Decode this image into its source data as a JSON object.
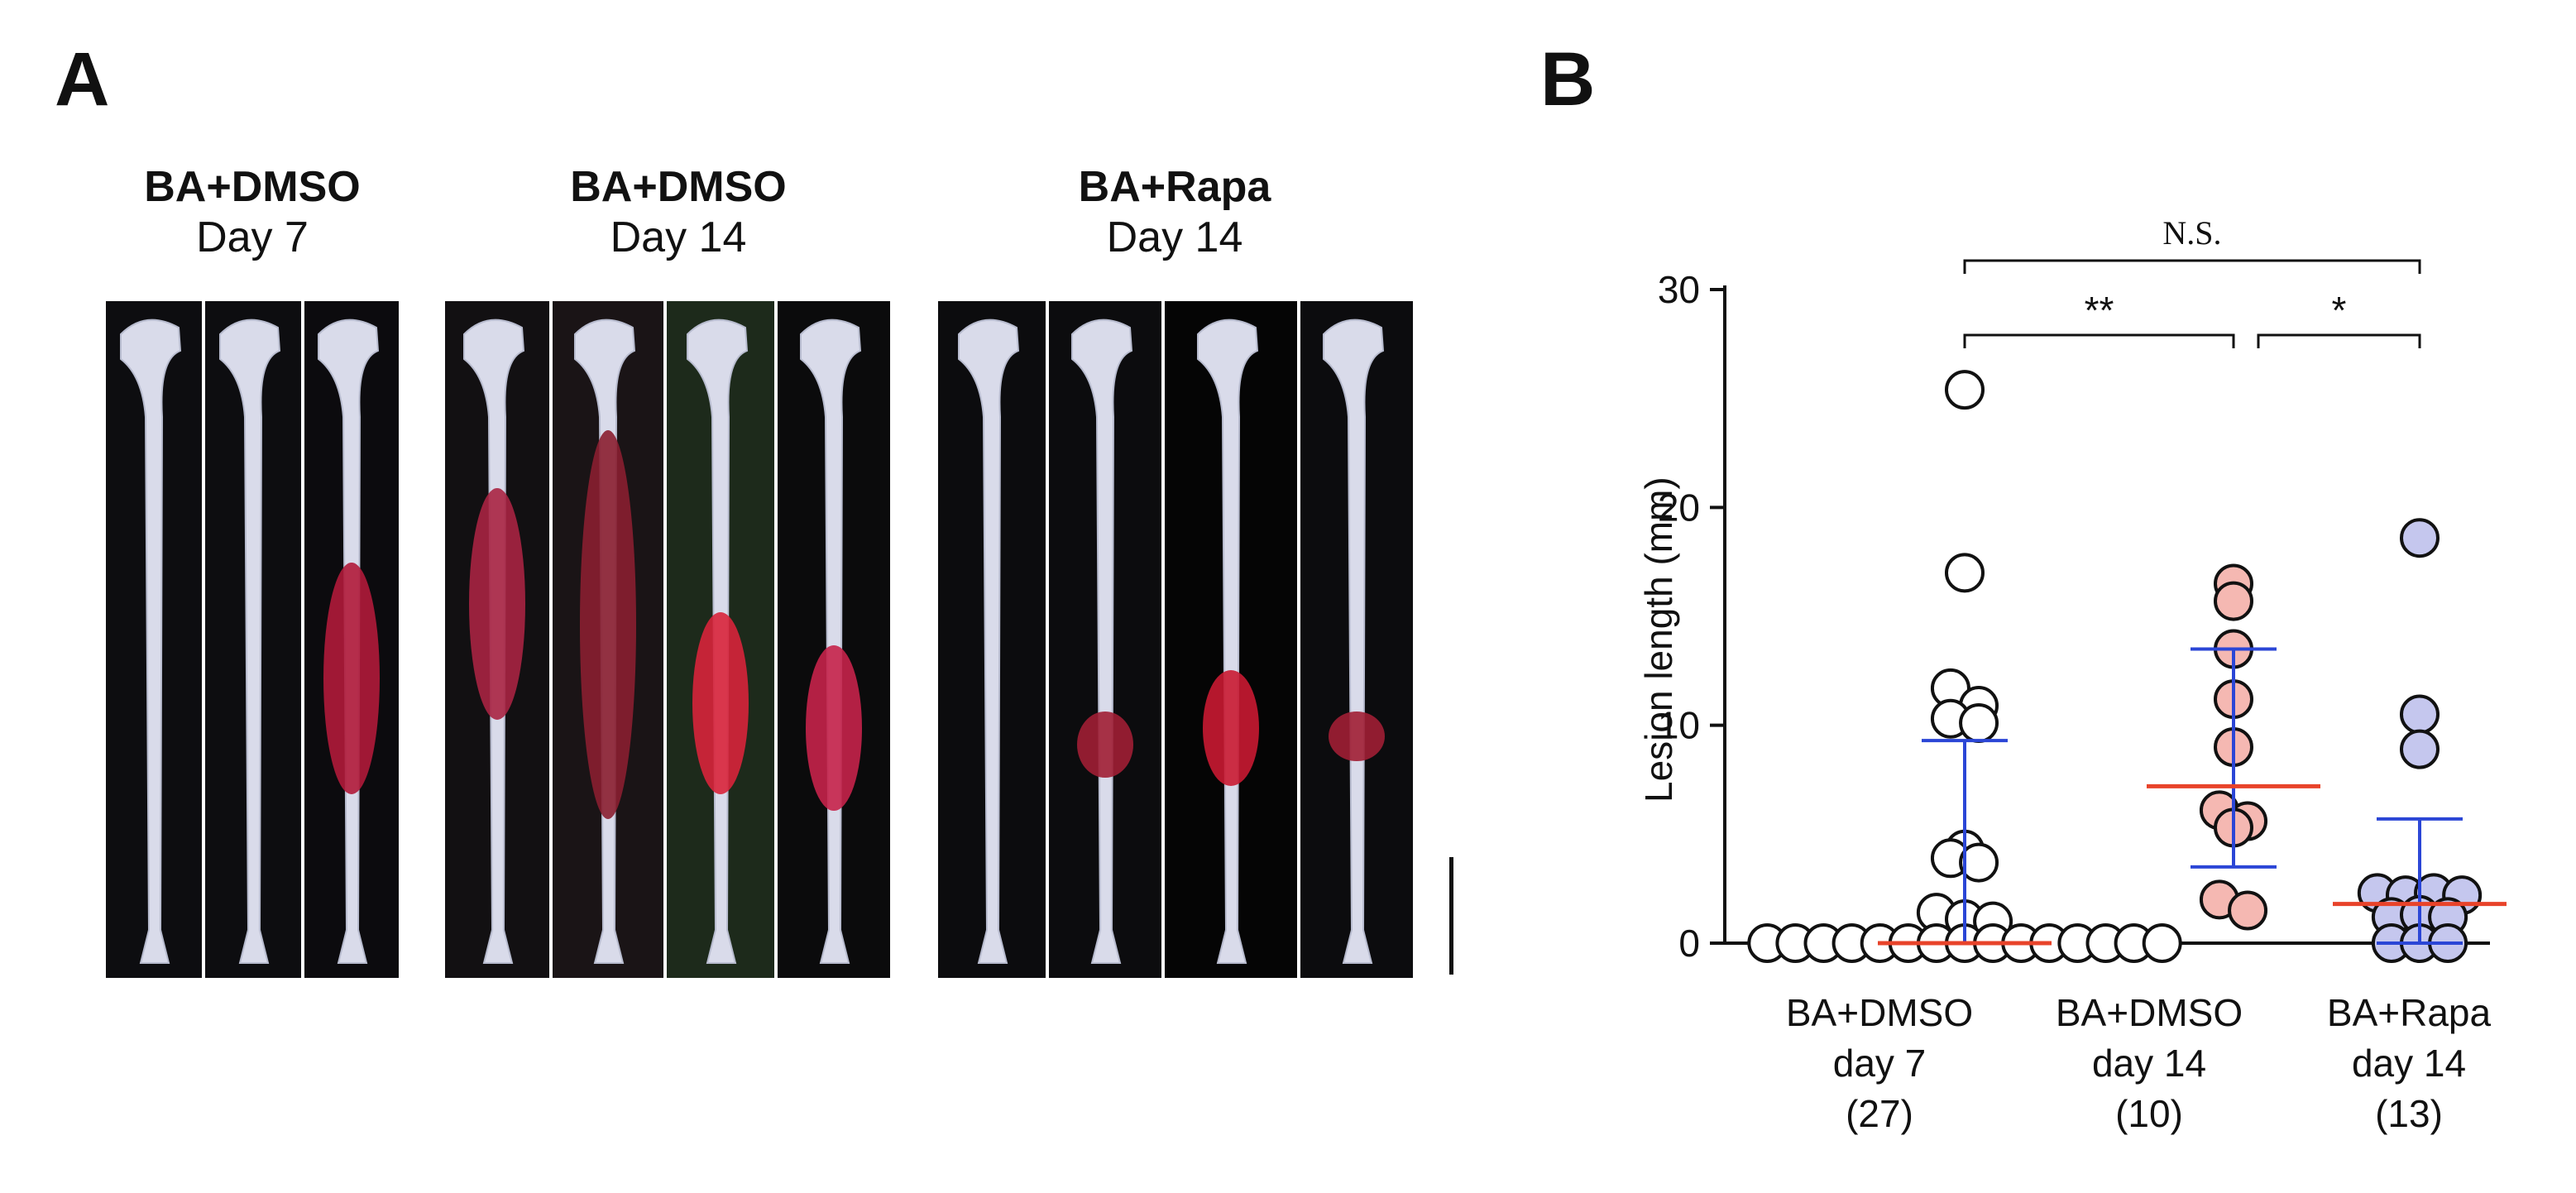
{
  "panel_a": {
    "letter": "A",
    "groups": [
      {
        "line1": "BA+DMSO",
        "line2": "Day 7",
        "n_strips": 3
      },
      {
        "line1": "BA+DMSO",
        "line2": "Day 14",
        "n_strips": 4
      },
      {
        "line1": "BA+Rapa",
        "line2": "Day 14",
        "n_strips": 4
      }
    ]
  },
  "panel_b": {
    "letter": "B",
    "chart_data": {
      "type": "scatter",
      "ylabel": "Lesion length (mm)",
      "ylim": [
        0,
        30
      ],
      "yticks": [
        0,
        10,
        20,
        30
      ],
      "grid": false,
      "categories": [
        {
          "line1": "BA+DMSO",
          "line2": "day 7",
          "line3": "(27)"
        },
        {
          "line1": "BA+DMSO",
          "line2": "day 14",
          "line3": "(10)"
        },
        {
          "line1": "BA+Rapa",
          "line2": "day 14",
          "line3": "(13)"
        }
      ],
      "series": [
        {
          "fill": "#ffffff",
          "values": [
            25.4,
            17.0,
            11.7,
            10.3,
            10.1,
            10.9,
            4.3,
            3.9,
            3.7,
            1.4,
            1.1,
            1.0,
            0,
            0,
            0,
            0,
            0,
            0,
            0,
            0,
            0,
            0,
            0,
            0,
            0,
            0,
            0
          ],
          "median": 0,
          "iqr": [
            0,
            9.3
          ]
        },
        {
          "fill": "#f5b8b2",
          "values": [
            16.5,
            15.7,
            13.5,
            11.2,
            9.0,
            6.1,
            5.3,
            5.6,
            2.0,
            1.5
          ],
          "median": 7.2,
          "iqr": [
            3.5,
            13.5
          ]
        },
        {
          "fill": "#c5c7ee",
          "values": [
            18.6,
            10.5,
            8.9,
            2.3,
            2.2,
            2.3,
            2.2,
            1.2,
            1.3,
            1.2,
            0,
            0,
            0
          ],
          "median": 1.8,
          "iqr": [
            0,
            5.7
          ]
        }
      ],
      "significance": [
        {
          "label": "**"
        },
        {
          "label": "*"
        },
        {
          "label": "N.S."
        }
      ],
      "colors": {
        "median": "#e8432a",
        "iqr": "#2b46d6",
        "marker_edge": "#111111"
      }
    }
  }
}
